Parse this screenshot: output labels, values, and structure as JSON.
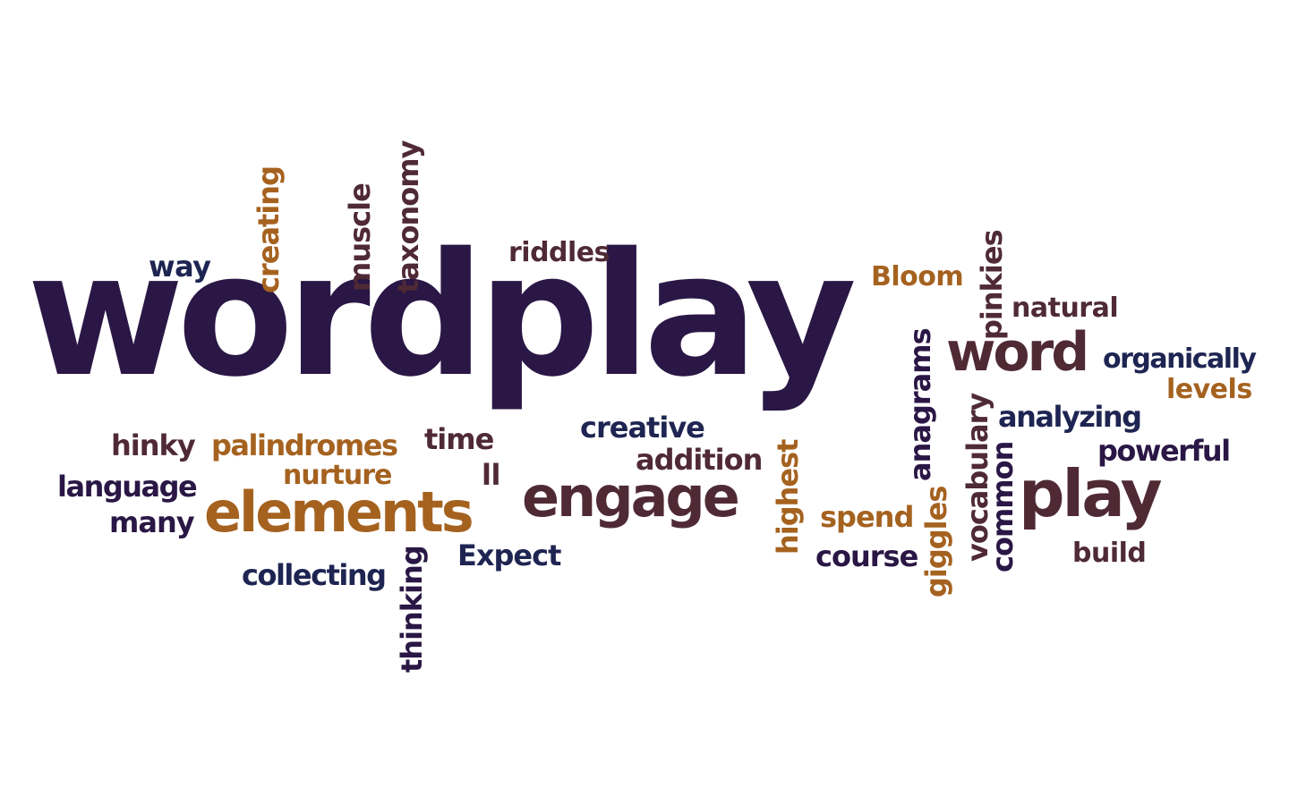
{
  "words": {
    "wordplay": "wordplay",
    "way": "way",
    "creating": "creating",
    "muscle": "muscle",
    "taxonomy": "taxonomy",
    "riddles": "riddles",
    "bloom": "Bloom",
    "pinkies": "pinkies",
    "natural": "natural",
    "word": "word",
    "organically": "organically",
    "levels": "levels",
    "anagrams": "anagrams",
    "vocabulary": "vocabulary",
    "analyzing": "analyzing",
    "powerful": "powerful",
    "common": "common",
    "play": "play",
    "giggles": "giggles",
    "build": "build",
    "highest": "highest",
    "spend": "spend",
    "course": "course",
    "creative": "creative",
    "addition": "addition",
    "engage": "engage",
    "ll": "ll",
    "time": "time",
    "hinky": "hinky",
    "palindromes": "palindromes",
    "nurture": "nurture",
    "language": "language",
    "elements": "elements",
    "many": "many",
    "collecting": "collecting",
    "thinking": "thinking",
    "expect": "Expect"
  },
  "colors": {
    "deep_purple": "#2a1745",
    "plum": "#4f2a35",
    "ochre": "#a5621f",
    "navy": "#1e2552",
    "background": "#ffffff"
  }
}
